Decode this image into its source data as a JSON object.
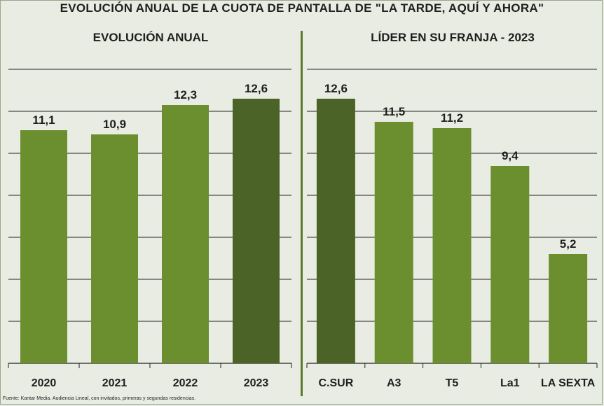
{
  "title": "EVOLUCIÓN ANUAL DE LA CUOTA DE PANTALLA DE \"LA TARDE, AQUÍ Y AHORA\"",
  "source": "Fuente: Kantar Media. Audiencia Lineal, con invitados, primeras y segundas residencias.",
  "colors": {
    "bar_light": "#6b8f2f",
    "bar_dark": "#4b6327",
    "grid": "#222222",
    "divider": "#5a7a2a"
  },
  "chart_data": [
    {
      "type": "bar",
      "title": "EVOLUCIÓN ANUAL",
      "categories": [
        "2020",
        "2021",
        "2022",
        "2023"
      ],
      "values": [
        11.1,
        10.9,
        12.3,
        12.6
      ],
      "value_labels": [
        "11,1",
        "10,9",
        "12,3",
        "12,6"
      ],
      "highlight": [
        false,
        false,
        false,
        true
      ],
      "xlabel": "",
      "ylabel": "",
      "ylim": [
        0,
        14
      ],
      "grid": true
    },
    {
      "type": "bar",
      "title": "LÍDER EN SU FRANJA - 2023",
      "categories": [
        "C.SUR",
        "A3",
        "T5",
        "La1",
        "LA SEXTA"
      ],
      "values": [
        12.6,
        11.5,
        11.2,
        9.4,
        5.2
      ],
      "value_labels": [
        "12,6",
        "11,5",
        "11,2",
        "9,4",
        "5,2"
      ],
      "highlight": [
        true,
        false,
        false,
        false,
        false
      ],
      "xlabel": "",
      "ylabel": "",
      "ylim": [
        0,
        14
      ],
      "grid": true
    }
  ]
}
